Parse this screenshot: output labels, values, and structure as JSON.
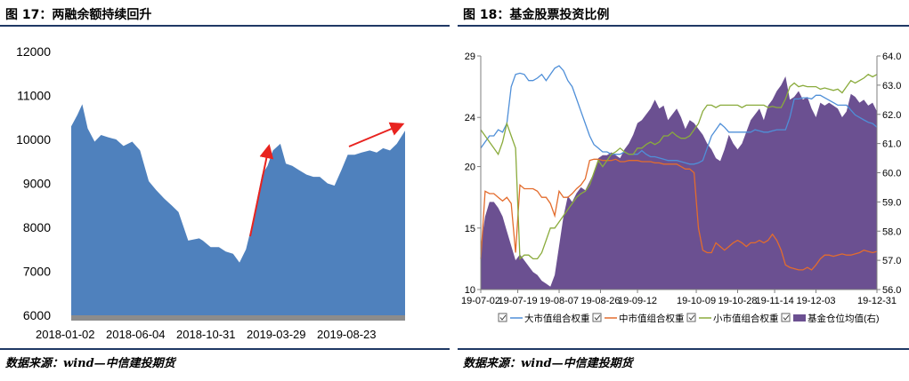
{
  "left": {
    "title": "图 17：两融余额持续回升",
    "source": "数据来源：wind—中信建投期货",
    "colors": {
      "area": "#4f81bd",
      "baseline": "#8c8c8c",
      "arrow": "#e8231f"
    },
    "chart_data": {
      "type": "area",
      "title": "",
      "xlabel": "",
      "ylabel": "",
      "x_tick_labels": [
        "2018-01-02",
        "2018-06-04",
        "2018-10-31",
        "2019-03-29",
        "2019-08-23"
      ],
      "y_tick_labels": [
        "6000",
        "7000",
        "8000",
        "9000",
        "10000",
        "11000",
        "12000"
      ],
      "ylim": [
        6000,
        12000
      ],
      "xlim": [
        "2018-01-02",
        "2019-12-31"
      ],
      "series": [
        {
          "x": [
            "2018-01-02",
            "2018-01-15",
            "2018-01-26",
            "2018-02-07",
            "2018-02-22",
            "2018-03-08",
            "2018-03-23",
            "2018-04-10",
            "2018-04-26",
            "2018-05-15",
            "2018-06-01",
            "2018-06-20",
            "2018-07-06",
            "2018-07-24",
            "2018-08-09",
            "2018-08-24",
            "2018-09-14",
            "2018-10-08",
            "2018-10-16",
            "2018-11-02",
            "2018-11-20",
            "2018-12-05",
            "2018-12-21",
            "2019-01-04",
            "2019-01-18",
            "2019-02-01",
            "2019-02-22",
            "2019-03-06",
            "2019-03-18",
            "2019-04-03",
            "2019-04-15",
            "2019-04-29",
            "2019-05-14",
            "2019-05-30",
            "2019-06-14",
            "2019-06-28",
            "2019-07-15",
            "2019-07-30",
            "2019-08-14",
            "2019-08-28",
            "2019-09-12",
            "2019-09-27",
            "2019-10-15",
            "2019-10-30",
            "2019-11-13",
            "2019-11-28",
            "2019-12-13",
            "2019-12-31"
          ],
          "values": [
            10300,
            10550,
            10800,
            10250,
            9950,
            10100,
            10050,
            10000,
            9850,
            9950,
            9750,
            9050,
            8850,
            8650,
            8500,
            8350,
            7700,
            7750,
            7700,
            7550,
            7550,
            7450,
            7400,
            7200,
            7500,
            8100,
            9200,
            9400,
            9750,
            9900,
            9450,
            9400,
            9300,
            9200,
            9150,
            9150,
            9000,
            8950,
            9300,
            9650,
            9650,
            9700,
            9750,
            9700,
            9800,
            9750,
            9900,
            10200
          ]
        }
      ],
      "annotations": [
        "up-arrow",
        "up-right-arrow"
      ]
    }
  },
  "right": {
    "title": "图  18：基金股票投资比例",
    "source": "数据来源：wind—中信建投期货",
    "colors": {
      "large": "#4f8fd8",
      "mid": "#e36c2d",
      "small": "#8aab3c",
      "fund": "#6b5091"
    },
    "chart_data": {
      "type": "line",
      "title": "",
      "xlabel": "",
      "ylabel": "",
      "x_tick_labels": [
        "19-07-02",
        "19-07-19",
        "19-08-07",
        "19-08-26",
        "19-09-12",
        "19-10-09",
        "19-10-28",
        "19-11-14",
        "19-12-03",
        "19-12-31"
      ],
      "y_left_tick_labels": [
        "10",
        "15",
        "20",
        "24",
        "29"
      ],
      "y_left_ticks": [
        10,
        15,
        20,
        24,
        29
      ],
      "ylim_left": [
        10,
        29
      ],
      "y_right_tick_labels": [
        "56.0",
        "57.0",
        "58.0",
        "59.0",
        "60.0",
        "61.0",
        "62.0",
        "63.0",
        "64.0"
      ],
      "ylim_right": [
        56,
        64
      ],
      "grid": false,
      "legend_position": "bottom",
      "x": [
        "19-07-02",
        "19-07-04",
        "19-07-06",
        "19-07-08",
        "19-07-10",
        "19-07-12",
        "19-07-14",
        "19-07-16",
        "19-07-18",
        "19-07-20",
        "19-07-22",
        "19-07-24",
        "19-07-26",
        "19-07-28",
        "19-07-30",
        "19-08-01",
        "19-08-03",
        "19-08-05",
        "19-08-07",
        "19-08-09",
        "19-08-11",
        "19-08-13",
        "19-08-15",
        "19-08-17",
        "19-08-19",
        "19-08-21",
        "19-08-23",
        "19-08-25",
        "19-08-27",
        "19-08-29",
        "19-08-31",
        "19-09-02",
        "19-09-04",
        "19-09-06",
        "19-09-08",
        "19-09-10",
        "19-09-12",
        "19-09-14",
        "19-09-16",
        "19-09-18",
        "19-09-20",
        "19-09-22",
        "19-09-24",
        "19-09-26",
        "19-09-28",
        "19-09-30",
        "19-10-02",
        "19-10-04",
        "19-10-06",
        "19-10-08",
        "19-10-10",
        "19-10-12",
        "19-10-14",
        "19-10-16",
        "19-10-18",
        "19-10-20",
        "19-10-22",
        "19-10-24",
        "19-10-26",
        "19-10-28",
        "19-10-30",
        "19-11-01",
        "19-11-03",
        "19-11-05",
        "19-11-07",
        "19-11-09",
        "19-11-11",
        "19-11-13",
        "19-11-15",
        "19-11-17",
        "19-11-19",
        "19-11-21",
        "19-11-23",
        "19-11-25",
        "19-11-27",
        "19-11-29",
        "19-12-01",
        "19-12-03",
        "19-12-05",
        "19-12-07",
        "19-12-09",
        "19-12-11",
        "19-12-13",
        "19-12-15",
        "19-12-17",
        "19-12-19",
        "19-12-21",
        "19-12-23",
        "19-12-25",
        "19-12-27",
        "19-12-29",
        "19-12-31"
      ],
      "series": [
        {
          "name": "大市值组合权重",
          "axis": "left",
          "values": [
            21.5,
            22.0,
            22.5,
            22.5,
            23.0,
            22.8,
            23.5,
            26.5,
            27.5,
            27.6,
            27.5,
            27.0,
            27.0,
            27.2,
            27.5,
            27.0,
            27.5,
            28.0,
            28.2,
            27.8,
            27.0,
            26.5,
            25.5,
            24.5,
            23.5,
            22.5,
            21.8,
            21.5,
            21.2,
            21.2,
            21.0,
            21.0,
            21.0,
            21.2,
            21.0,
            21.0,
            21.0,
            21.3,
            21.0,
            20.8,
            20.8,
            20.7,
            20.6,
            20.5,
            20.5,
            20.5,
            20.4,
            20.3,
            20.2,
            20.2,
            20.3,
            20.5,
            21.5,
            22.5,
            23.0,
            23.5,
            23.2,
            22.8,
            22.8,
            22.8,
            22.8,
            22.8,
            22.8,
            23.0,
            22.9,
            22.8,
            22.8,
            22.9,
            23.0,
            23.0,
            23.0,
            24.0,
            25.5,
            25.5,
            25.6,
            25.6,
            25.5,
            25.8,
            25.8,
            25.6,
            25.4,
            25.2,
            25.0,
            25.0,
            25.0,
            24.6,
            24.2,
            24.0,
            23.8,
            23.6,
            23.5,
            23.2
          ]
        },
        {
          "name": "中市值组合权重",
          "axis": "left",
          "values": [
            12.5,
            18.0,
            17.8,
            17.8,
            17.5,
            17.2,
            17.5,
            17.0,
            13.0,
            18.5,
            18.2,
            18.2,
            18.2,
            18.0,
            17.5,
            17.5,
            17.0,
            16.0,
            18.0,
            17.5,
            17.5,
            17.8,
            18.2,
            18.5,
            19.0,
            20.5,
            20.6,
            20.6,
            20.5,
            20.5,
            20.5,
            20.6,
            20.4,
            20.4,
            20.5,
            20.5,
            20.5,
            20.4,
            20.4,
            20.4,
            20.3,
            20.3,
            20.2,
            20.2,
            20.2,
            20.2,
            20.0,
            19.8,
            19.8,
            19.5,
            15.0,
            13.2,
            13.0,
            13.0,
            13.8,
            13.5,
            13.2,
            13.5,
            13.8,
            14.0,
            13.8,
            13.5,
            13.8,
            13.8,
            14.0,
            13.8,
            14.0,
            14.5,
            14.0,
            13.2,
            12.0,
            11.8,
            11.7,
            11.6,
            11.6,
            11.8,
            11.6,
            12.0,
            12.5,
            12.8,
            12.8,
            12.7,
            12.8,
            12.9,
            12.8,
            12.8,
            12.9,
            13.0,
            13.2,
            13.1,
            13.0,
            13.1
          ]
        },
        {
          "name": "小市值组合权重",
          "axis": "left",
          "values": [
            23.0,
            22.5,
            22.0,
            21.5,
            21.0,
            22.0,
            23.5,
            22.5,
            21.5,
            12.5,
            12.8,
            12.8,
            12.5,
            12.5,
            13.0,
            14.0,
            15.0,
            15.0,
            15.5,
            16.0,
            16.5,
            17.0,
            17.5,
            17.8,
            18.0,
            18.5,
            19.5,
            20.5,
            20.0,
            20.5,
            21.0,
            21.2,
            21.5,
            21.2,
            21.0,
            21.0,
            21.5,
            21.5,
            21.8,
            22.0,
            21.8,
            22.0,
            22.5,
            22.5,
            22.8,
            22.5,
            22.3,
            22.3,
            22.5,
            23.0,
            23.5,
            24.5,
            25.0,
            25.0,
            24.8,
            25.0,
            25.0,
            25.0,
            25.0,
            25.0,
            24.8,
            25.0,
            25.0,
            25.0,
            25.0,
            25.0,
            24.8,
            24.9,
            24.8,
            24.8,
            25.5,
            26.5,
            26.8,
            26.5,
            26.6,
            26.5,
            26.5,
            26.5,
            26.3,
            26.4,
            26.3,
            26.2,
            26.3,
            26.0,
            26.5,
            27.0,
            26.8,
            27.0,
            27.2,
            27.5,
            27.3,
            27.5
          ]
        },
        {
          "name": "基金仓位均值(右)",
          "axis": "right",
          "type": "area",
          "values": [
            57.5,
            58.5,
            59.0,
            59.0,
            58.8,
            58.5,
            58.0,
            57.5,
            57.0,
            57.2,
            57.0,
            56.8,
            56.6,
            56.5,
            56.3,
            56.2,
            56.1,
            56.5,
            57.5,
            58.5,
            59.2,
            59.0,
            59.3,
            59.5,
            59.4,
            59.7,
            60.0,
            60.5,
            60.6,
            60.6,
            60.7,
            60.6,
            60.5,
            60.8,
            61.0,
            61.3,
            61.7,
            61.8,
            62.0,
            62.2,
            62.5,
            62.2,
            62.3,
            61.8,
            62.0,
            62.2,
            61.9,
            61.5,
            61.8,
            61.7,
            61.5,
            61.3,
            61.0,
            60.8,
            60.5,
            60.4,
            60.8,
            61.3,
            61.0,
            60.8,
            61.0,
            61.4,
            61.8,
            62.0,
            62.2,
            61.8,
            62.3,
            62.5,
            62.8,
            63.0,
            63.3,
            62.5,
            62.6,
            62.8,
            62.5,
            62.6,
            62.2,
            61.9,
            62.4,
            62.3,
            62.4,
            62.3,
            62.2,
            61.9,
            62.1,
            62.7,
            62.6,
            62.4,
            62.5,
            62.3,
            62.4,
            62.1
          ]
        }
      ]
    }
  }
}
